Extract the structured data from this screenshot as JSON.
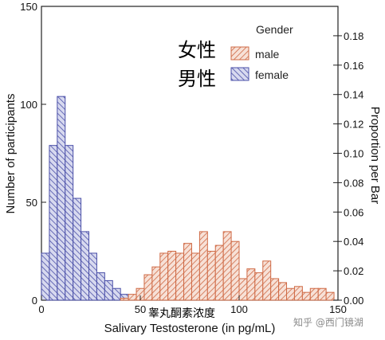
{
  "chart_data": {
    "type": "bar",
    "subtype": "overlaid histogram",
    "xlabel": "Salivary Testosterone (in pg/mL)",
    "ylabel": "Number of participants",
    "y2label": "Proportion per Bar",
    "xlim": [
      0,
      150
    ],
    "ylim": [
      0,
      150
    ],
    "y2lim": [
      0,
      0.2
    ],
    "x_ticks": [
      0,
      50,
      100,
      150
    ],
    "x_tick_labels": [
      "0",
      "50",
      "100",
      "150"
    ],
    "y_ticks": [
      0,
      50,
      100,
      150
    ],
    "y_tick_labels": [
      "0",
      "50",
      "100",
      "150"
    ],
    "y2_ticks": [
      0,
      0.02,
      0.04,
      0.06,
      0.08,
      0.1,
      0.12,
      0.14,
      0.16,
      0.18
    ],
    "y2_tick_labels": [
      "0.00",
      "0.02",
      "0.04",
      "0.06",
      "0.08",
      "0.10",
      "0.12",
      "0.14",
      "0.16",
      "0.18"
    ],
    "bin_width": 4,
    "legend": {
      "title": "Gender",
      "placement": "top-right"
    },
    "series": [
      {
        "name": "male",
        "color": "#cf6a45",
        "bin_starts": [
          0,
          4,
          8,
          12,
          16,
          20,
          24,
          28,
          32,
          36,
          40,
          44,
          48,
          52,
          56,
          60,
          64,
          68,
          72,
          76,
          80,
          84,
          88,
          92,
          96,
          100,
          104,
          108,
          112,
          116,
          120,
          124,
          128,
          132,
          136,
          140,
          144
        ],
        "values": [
          0,
          0,
          0,
          0,
          0,
          0,
          0,
          0,
          0,
          0,
          1,
          3,
          6,
          13,
          17,
          24,
          25,
          24,
          29,
          24,
          35,
          25,
          28,
          35,
          30,
          11,
          16,
          14,
          20,
          11,
          9,
          6,
          7,
          4,
          6,
          6,
          4
        ]
      },
      {
        "name": "female",
        "color": "#5b5fb3",
        "bin_starts": [
          0,
          4,
          8,
          12,
          16,
          20,
          24,
          28,
          32,
          36,
          40,
          44,
          48,
          52,
          56,
          60,
          64,
          68,
          72,
          76,
          80,
          84,
          88,
          92,
          96,
          100,
          104,
          108,
          112,
          116,
          120,
          124,
          128,
          132,
          136,
          140,
          144
        ],
        "values": [
          24,
          79,
          104,
          79,
          52,
          35,
          24,
          14,
          10,
          6,
          3,
          1,
          0,
          0,
          0,
          0,
          0,
          0,
          0,
          0,
          0,
          0,
          0,
          0,
          0,
          0,
          0,
          0,
          0,
          0,
          0,
          0,
          0,
          0,
          0,
          0,
          0
        ]
      }
    ]
  },
  "annotations": {
    "female_cn": "女性",
    "male_cn": "男性",
    "x_caption_cn": "睾丸酮素浓度"
  },
  "watermark": "知乎 @西门镜湖"
}
